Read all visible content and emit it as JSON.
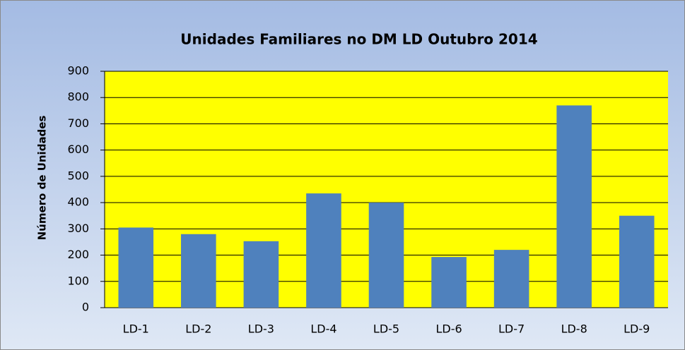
{
  "chart_data": {
    "type": "bar",
    "title": "Unidades Familiares no DM LD Outubro 2014",
    "ylabel": "Número de Unidades",
    "categories": [
      "LD-1",
      "LD-2",
      "LD-3",
      "LD-4",
      "LD-5",
      "LD-6",
      "LD-7",
      "LD-8",
      "LD-9"
    ],
    "values": [
      305,
      280,
      253,
      435,
      400,
      193,
      220,
      770,
      350
    ],
    "color": "#4f81bd",
    "ylim": [
      0,
      900
    ],
    "yticks": [
      0,
      100,
      200,
      300,
      400,
      500,
      600,
      700,
      800,
      900
    ],
    "grid": true
  }
}
